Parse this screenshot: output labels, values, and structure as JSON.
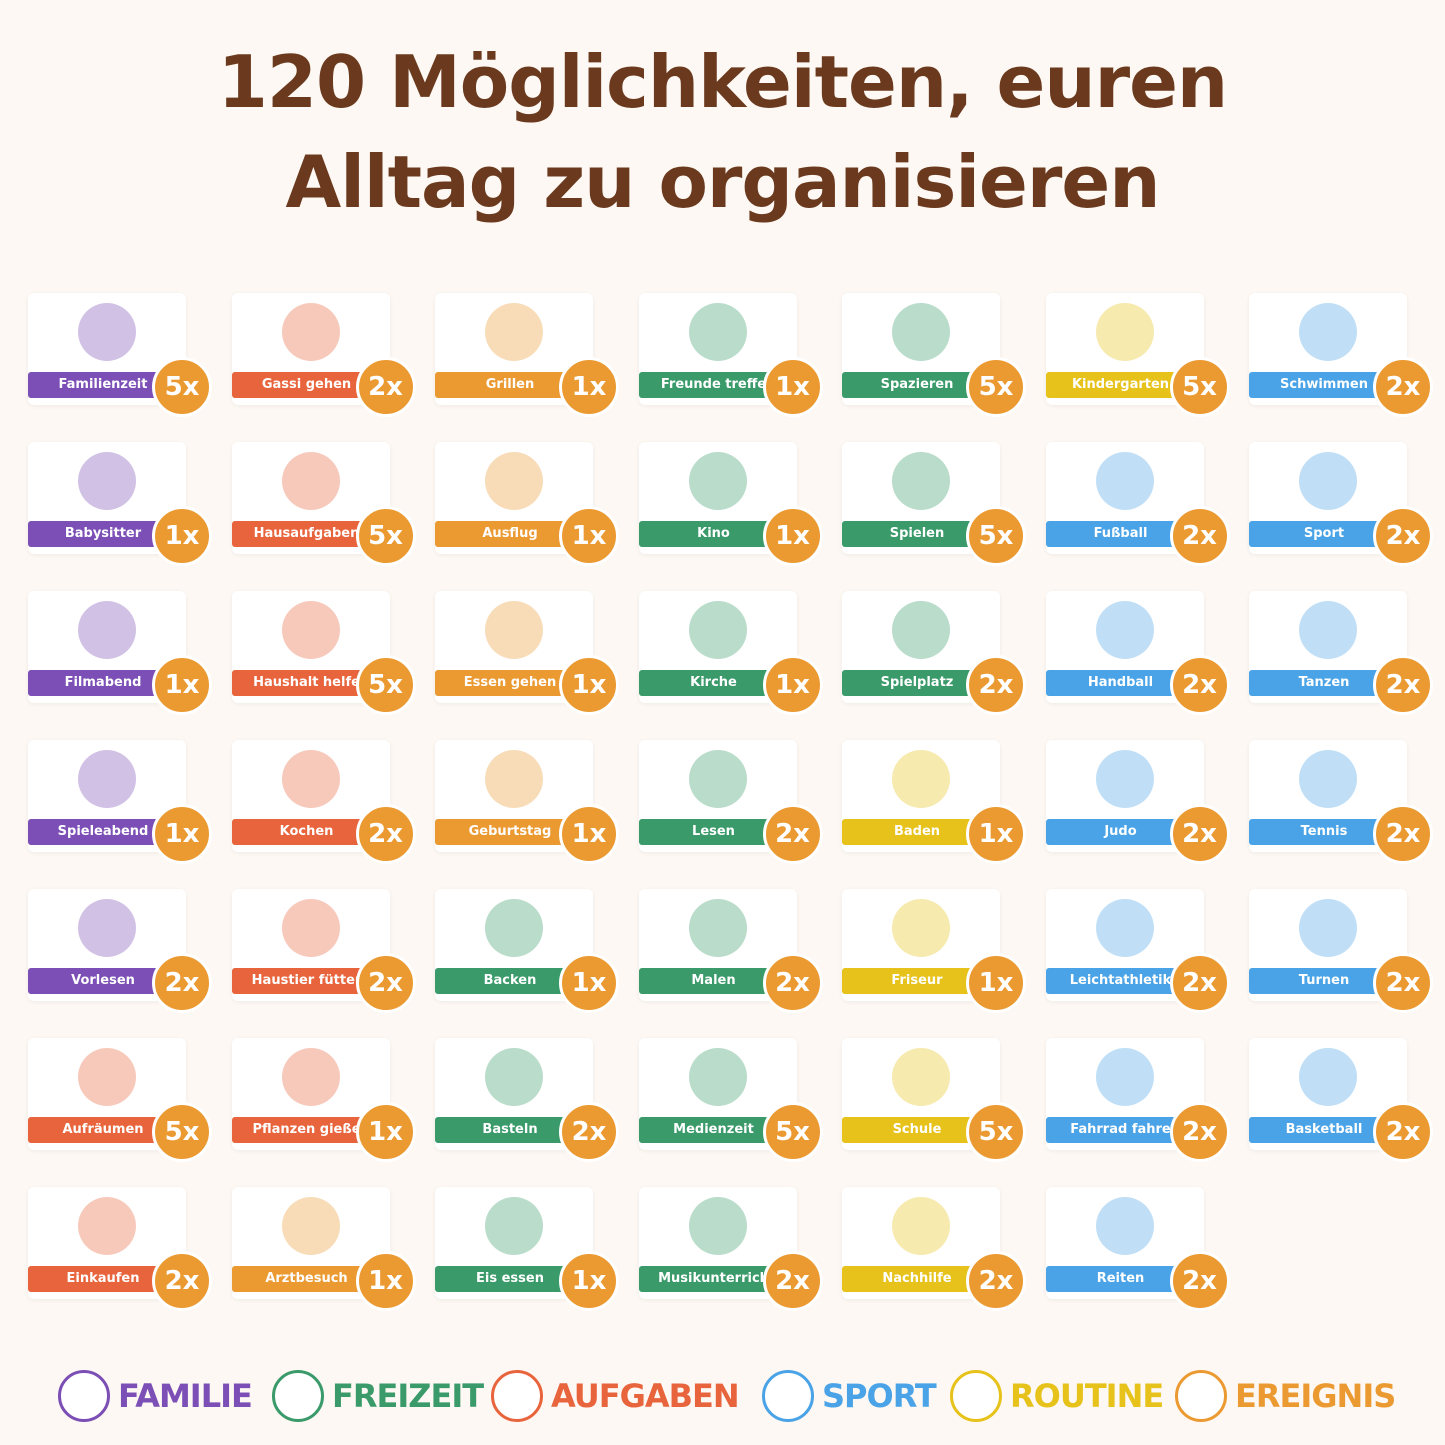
{
  "header": {
    "title_lines": [
      "120 Möglichkeiten, euren",
      "Alltag zu organisieren"
    ]
  },
  "cards": [
    {
      "label": "Familienzeit",
      "count": "5x",
      "color": "#7b4fb5"
    },
    {
      "label": "Gassi gehen",
      "count": "2x",
      "color": "#e8643c"
    },
    {
      "label": "Grillen",
      "count": "1x",
      "color": "#eb9a32"
    },
    {
      "label": "Freunde treffe",
      "count": "1x",
      "color": "#3a9a6a"
    },
    {
      "label": "Spazieren",
      "count": "5x",
      "color": "#3a9a6a"
    },
    {
      "label": "Kindergarten",
      "count": "5x",
      "color": "#e6c21a"
    },
    {
      "label": "Schwimmen",
      "count": "2x",
      "color": "#4aa3e6"
    },
    {
      "label": "Babysitter",
      "count": "1x",
      "color": "#7b4fb5"
    },
    {
      "label": "Hausaufgaben",
      "count": "5x",
      "color": "#e8643c"
    },
    {
      "label": "Ausflug",
      "count": "1x",
      "color": "#eb9a32"
    },
    {
      "label": "Kino",
      "count": "1x",
      "color": "#3a9a6a"
    },
    {
      "label": "Spielen",
      "count": "5x",
      "color": "#3a9a6a"
    },
    {
      "label": "Fußball",
      "count": "2x",
      "color": "#4aa3e6"
    },
    {
      "label": "Sport",
      "count": "2x",
      "color": "#4aa3e6"
    },
    {
      "label": "Filmabend",
      "count": "1x",
      "color": "#7b4fb5"
    },
    {
      "label": "Haushalt helfe",
      "count": "5x",
      "color": "#e8643c"
    },
    {
      "label": "Essen gehen",
      "count": "1x",
      "color": "#eb9a32"
    },
    {
      "label": "Kirche",
      "count": "1x",
      "color": "#3a9a6a"
    },
    {
      "label": "Spielplatz",
      "count": "2x",
      "color": "#3a9a6a"
    },
    {
      "label": "Handball",
      "count": "2x",
      "color": "#4aa3e6"
    },
    {
      "label": "Tanzen",
      "count": "2x",
      "color": "#4aa3e6"
    },
    {
      "label": "Spieleabend",
      "count": "1x",
      "color": "#7b4fb5"
    },
    {
      "label": "Kochen",
      "count": "2x",
      "color": "#e8643c"
    },
    {
      "label": "Geburtstag",
      "count": "1x",
      "color": "#eb9a32"
    },
    {
      "label": "Lesen",
      "count": "2x",
      "color": "#3a9a6a"
    },
    {
      "label": "Baden",
      "count": "1x",
      "color": "#e6c21a"
    },
    {
      "label": "Judo",
      "count": "2x",
      "color": "#4aa3e6"
    },
    {
      "label": "Tennis",
      "count": "2x",
      "color": "#4aa3e6"
    },
    {
      "label": "Vorlesen",
      "count": "2x",
      "color": "#7b4fb5"
    },
    {
      "label": "Haustier fütter",
      "count": "2x",
      "color": "#e8643c"
    },
    {
      "label": "Backen",
      "count": "1x",
      "color": "#3a9a6a"
    },
    {
      "label": "Malen",
      "count": "2x",
      "color": "#3a9a6a"
    },
    {
      "label": "Friseur",
      "count": "1x",
      "color": "#e6c21a"
    },
    {
      "label": "Leichtathletik",
      "count": "2x",
      "color": "#4aa3e6"
    },
    {
      "label": "Turnen",
      "count": "2x",
      "color": "#4aa3e6"
    },
    {
      "label": "Aufräumen",
      "count": "5x",
      "color": "#e8643c"
    },
    {
      "label": "Pflanzen gieße",
      "count": "1x",
      "color": "#e8643c"
    },
    {
      "label": "Basteln",
      "count": "2x",
      "color": "#3a9a6a"
    },
    {
      "label": "Medienzeit",
      "count": "5x",
      "color": "#3a9a6a"
    },
    {
      "label": "Schule",
      "count": "5x",
      "color": "#e6c21a"
    },
    {
      "label": "Fahrrad fahre",
      "count": "2x",
      "color": "#4aa3e6"
    },
    {
      "label": "Basketball",
      "count": "2x",
      "color": "#4aa3e6"
    },
    {
      "label": "Einkaufen",
      "count": "2x",
      "color": "#e8643c"
    },
    {
      "label": "Arztbesuch",
      "count": "1x",
      "color": "#eb9a32"
    },
    {
      "label": "Eis essen",
      "count": "1x",
      "color": "#3a9a6a"
    },
    {
      "label": "Musikunterrich",
      "count": "2x",
      "color": "#3a9a6a"
    },
    {
      "label": "Nachhilfe",
      "count": "2x",
      "color": "#e6c21a"
    },
    {
      "label": "Reiten",
      "count": "2x",
      "color": "#4aa3e6"
    }
  ],
  "legend": [
    {
      "name": "FAMILIE",
      "color": "#7b4fb5"
    },
    {
      "name": "FREIZEIT",
      "color": "#3a9a6a"
    },
    {
      "name": "AUFGABEN",
      "color": "#e8643c"
    },
    {
      "name": "SPORT",
      "color": "#4aa3e6"
    },
    {
      "name": "ROUTINE",
      "color": "#e6c21a"
    },
    {
      "name": "EREIGNIS",
      "color": "#eb9a32"
    }
  ]
}
